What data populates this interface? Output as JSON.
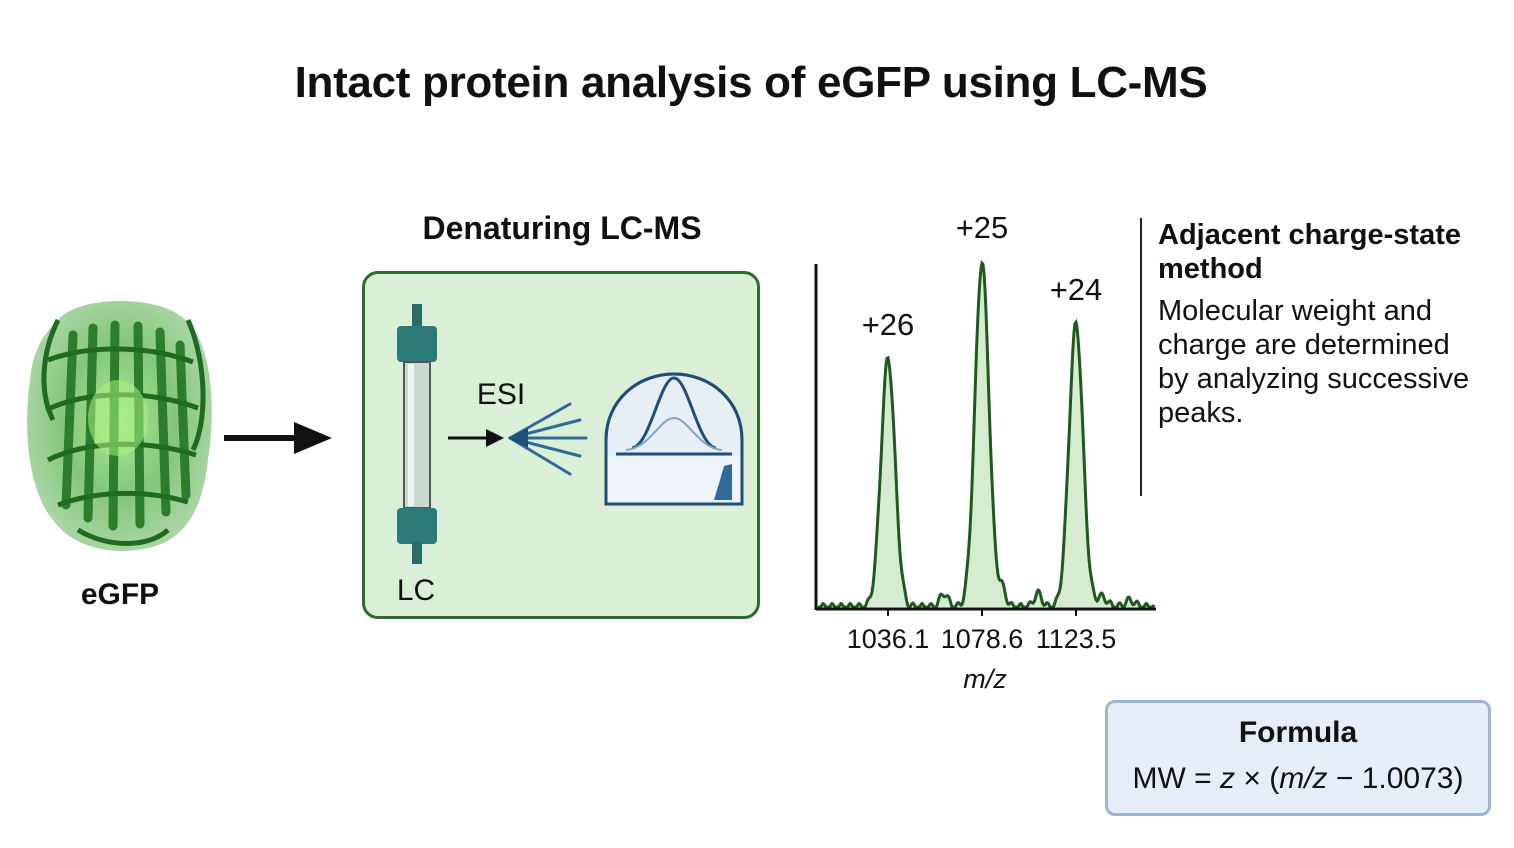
{
  "title": "Intact protein analysis of eGFP using LC-MS",
  "protein": {
    "label": "eGFP",
    "color": "#3da63d"
  },
  "lcms": {
    "heading": "Denaturing LC-MS",
    "lc_label": "LC",
    "esi_label": "ESI",
    "box_fill": "#d9efd6",
    "box_border": "#2f6b2f"
  },
  "chart_data": {
    "type": "line",
    "xlabel": "m/z",
    "peaks": [
      {
        "label": "+26",
        "mz": "1036.1",
        "z": 26,
        "relative_height": 0.72
      },
      {
        "label": "+25",
        "mz": "1078.6",
        "z": 25,
        "relative_height": 1.0
      },
      {
        "label": "+24",
        "mz": "1123.5",
        "z": 24,
        "relative_height": 0.82
      }
    ],
    "line_color": "#1e5a1e",
    "fill_color": "#d6ecd0"
  },
  "method": {
    "title": "Adjacent charge-state method",
    "description": "Molecular weight and charge are determined by analyzing successive peaks."
  },
  "formula": {
    "title": "Formula",
    "lhs": "MW = ",
    "z": "z",
    "times": " × (",
    "mz": "m/z",
    "rest": " − 1.0073)"
  }
}
